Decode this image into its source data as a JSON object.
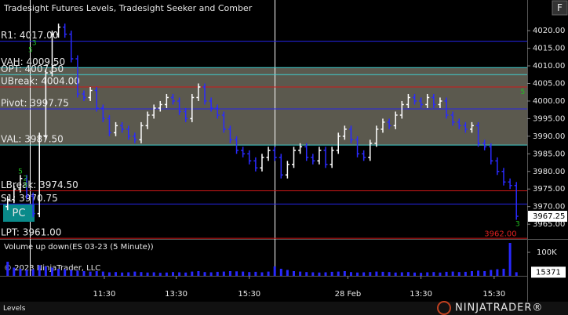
{
  "chart_data": {
    "type": "ohlc",
    "title": "Tradesight Futures Levels, Tradesight Seeker and Comber",
    "button": "F",
    "badge": "PC",
    "copyright": "© 2023 NinjaTrader, LLC",
    "tab": "Levels",
    "logo": "NINJATRADER®",
    "xlim": [
      -1.2,
      81.7
    ],
    "xticks": [
      {
        "value": 15.2,
        "label": "11:30"
      },
      {
        "value": 26.5,
        "label": "13:30"
      },
      {
        "value": 38,
        "label": "15:30"
      },
      {
        "value": 53.5,
        "label": "28 Feb"
      },
      {
        "value": 65,
        "label": "13:30"
      },
      {
        "value": 76.5,
        "label": "15:30"
      }
    ],
    "ylim": [
      3960.8,
      4027.6
    ],
    "yticks": [
      {
        "value": 3965,
        "label": "3965.00"
      },
      {
        "value": 3970,
        "label": "3970.00"
      },
      {
        "value": 3975,
        "label": "3975.00"
      },
      {
        "value": 3980,
        "label": "3980.00"
      },
      {
        "value": 3985,
        "label": "3985.00"
      },
      {
        "value": 3990,
        "label": "3990.00"
      },
      {
        "value": 3995,
        "label": "3995.00"
      },
      {
        "value": 4000,
        "label": "4000.00"
      },
      {
        "value": 4005,
        "label": "4005.00"
      },
      {
        "value": 4010,
        "label": "4010.00"
      },
      {
        "value": 4015,
        "label": "4015.00"
      },
      {
        "value": 4020,
        "label": "4020.00"
      }
    ],
    "grid": false,
    "up_color": "#ffffff",
    "down_color": "#2a2aff",
    "open": [
      3970,
      3972,
      3975,
      3978,
      3973,
      3968,
      3990,
      4008,
      4019,
      4021,
      4019,
      4012,
      4002,
      4001,
      4003,
      3998,
      3995,
      3991,
      3993,
      3992,
      3990,
      3989,
      3993,
      3996,
      3998,
      3999,
      4001,
      4000,
      3997,
      3995,
      4001,
      4004,
      4000,
      3998,
      3996,
      3992,
      3989,
      3986,
      3985,
      3983,
      3981,
      3984,
      3986,
      3984,
      3979,
      3982,
      3986,
      3987,
      3984,
      3983,
      3986,
      3982,
      3986,
      3990,
      3992,
      3989,
      3985,
      3984,
      3988,
      3992,
      3994,
      3993,
      3996,
      3999,
      4001,
      4000,
      3999,
      4001,
      3999,
      4000,
      3996,
      3994,
      3993,
      3992,
      3993,
      3988,
      3987,
      3983,
      3980,
      3977,
      3976
    ],
    "high": [
      3973,
      3976,
      3979,
      3979,
      3974,
      3991,
      4009,
      4020,
      4022,
      4022,
      4020,
      4013,
      4003,
      4004,
      4004,
      3999,
      3996,
      3994,
      3994,
      3993,
      3991,
      3994,
      3997,
      3999,
      4000,
      4002,
      4002,
      4001,
      3998,
      4002,
      4005,
      4005,
      4001,
      3999,
      3997,
      3993,
      3990,
      3987,
      3986,
      3984,
      3985,
      3987,
      3987,
      3985,
      3983,
      3987,
      3988,
      3988,
      3985,
      3987,
      3987,
      3987,
      3991,
      3993,
      3993,
      3990,
      3986,
      3989,
      3993,
      3995,
      3995,
      3997,
      4000,
      4002,
      4002,
      4001,
      4002,
      4002,
      4001,
      4001,
      3997,
      3995,
      3994,
      3994,
      3994,
      3989,
      3988,
      3984,
      3981,
      3978,
      3977
    ],
    "low": [
      3969,
      3971,
      3974,
      3972,
      3967,
      3967,
      3989,
      4007,
      4018,
      4018,
      4011,
      4001,
      4000,
      4000,
      3997,
      3994,
      3990,
      3990,
      3991,
      3989,
      3988,
      3988,
      3992,
      3995,
      3997,
      3998,
      3999,
      3996,
      3994,
      3994,
      4000,
      3999,
      3997,
      3995,
      3991,
      3988,
      3985,
      3984,
      3982,
      3980,
      3980,
      3983,
      3983,
      3978,
      3978,
      3981,
      3985,
      3983,
      3982,
      3982,
      3981,
      3981,
      3985,
      3989,
      3988,
      3984,
      3983,
      3983,
      3987,
      3991,
      3992,
      3992,
      3995,
      3998,
      3999,
      3998,
      3998,
      3998,
      3998,
      3995,
      3993,
      3992,
      3991,
      3991,
      3987,
      3986,
      3982,
      3979,
      3976,
      3975,
      3966.25
    ],
    "close": [
      3972,
      3975,
      3978,
      3973,
      3968,
      3990,
      4008,
      4019,
      4021,
      4019,
      4012,
      4002,
      4001,
      4003,
      3998,
      3995,
      3991,
      3993,
      3992,
      3990,
      3989,
      3993,
      3996,
      3998,
      3999,
      4001,
      4000,
      3997,
      3995,
      4001,
      4004,
      4000,
      3998,
      3996,
      3992,
      3989,
      3986,
      3985,
      3983,
      3981,
      3984,
      3986,
      3984,
      3979,
      3982,
      3986,
      3987,
      3984,
      3983,
      3986,
      3982,
      3986,
      3990,
      3992,
      3989,
      3985,
      3984,
      3988,
      3992,
      3994,
      3993,
      3996,
      3999,
      4001,
      4000,
      3999,
      4001,
      3999,
      4000,
      3996,
      3994,
      3993,
      3992,
      3993,
      3988,
      3987,
      3983,
      3980,
      3977,
      3976,
      3967.25
    ],
    "levels": [
      {
        "label": "R1: 4017.00",
        "value": 4017,
        "color": "#2424e8"
      },
      {
        "label": "VAH: 4009.50",
        "value": 4009.5,
        "color": "#40d0d0"
      },
      {
        "label": "OPT: 4007.50",
        "value": 4007.5,
        "color": "#40d0d0"
      },
      {
        "label": "UBreak: 4004.00",
        "value": 4004,
        "color": "#d01818"
      },
      {
        "label": "Pivot: 3997.75",
        "value": 3997.75,
        "color": "#2424e8"
      },
      {
        "label": "VAL: 3987.50",
        "value": 3987.5,
        "color": "#40d0d0"
      },
      {
        "label": "LBreak: 3974.50",
        "value": 3974.5,
        "color": "#d01818"
      },
      {
        "label": "S1: 3970.75",
        "value": 3970.75,
        "color": "#2424e8"
      },
      {
        "label": "LPT: 3961.00",
        "value": 3961,
        "color": "#d01818"
      }
    ],
    "value_area": {
      "from": 3987.5,
      "to": 4009.5,
      "color": "#6b685c"
    },
    "signals": [
      {
        "label": "3",
        "x": 4.2,
        "y": 4016.5
      },
      {
        "label": "5",
        "x": 3.6,
        "y": 4014.5
      },
      {
        "label": "5",
        "x": 2,
        "y": 3980
      },
      {
        "label": "2",
        "x": 2.8,
        "y": 3978
      },
      {
        "label": "3",
        "x": 2.8,
        "y": 3976
      },
      {
        "label": "5",
        "x": 81,
        "y": 4002.5
      },
      {
        "label": "3",
        "x": 80.2,
        "y": 3965
      }
    ],
    "annotations": [
      {
        "text": "3962.00",
        "x": 77.5,
        "y": 3962.2,
        "color": "#e02020"
      }
    ],
    "volume": {
      "title": "Volume up down(ES 03-23 (5 Minute))",
      "color": "#2828ff",
      "y2lim": [
        0,
        150000
      ],
      "y2ticks": [
        {
          "value": 100000,
          "label": "100K"
        }
      ],
      "values": [
        60000,
        35000,
        30000,
        25000,
        28000,
        45000,
        40000,
        35000,
        30000,
        28000,
        25000,
        22000,
        20000,
        18000,
        20000,
        18000,
        15000,
        16000,
        14000,
        15000,
        18000,
        16000,
        14000,
        15000,
        13000,
        14000,
        16000,
        15000,
        14000,
        18000,
        20000,
        16000,
        15000,
        17000,
        18000,
        20000,
        19000,
        18000,
        16000,
        17000,
        15000,
        18000,
        40000,
        30000,
        25000,
        20000,
        18000,
        16000,
        15000,
        14000,
        15000,
        17000,
        18000,
        20000,
        16000,
        14000,
        15000,
        16000,
        18000,
        17000,
        16000,
        14000,
        15000,
        16000,
        14000,
        13000,
        15000,
        16000,
        14000,
        17000,
        18000,
        16000,
        17000,
        20000,
        22000,
        20000,
        25000,
        28000,
        30000,
        140000,
        15371
      ]
    }
  }
}
